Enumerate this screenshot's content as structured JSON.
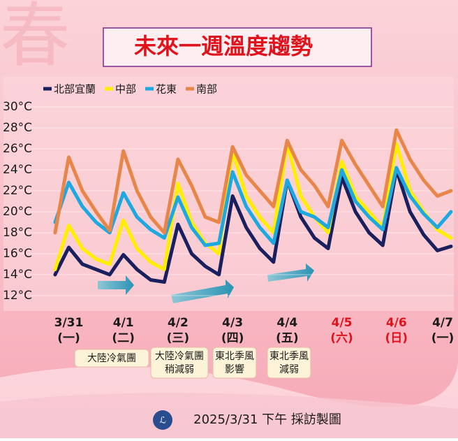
{
  "chart_data": {
    "type": "line",
    "title": "未來一週溫度趨勢",
    "background_text": "春",
    "x": [
      -0.25,
      0,
      0.25,
      0.5,
      0.75,
      1,
      1.25,
      1.5,
      1.75,
      2,
      2.25,
      2.5,
      2.75,
      3,
      3.25,
      3.5,
      3.75,
      4,
      4.25,
      4.5,
      4.75,
      5,
      5.25,
      5.5,
      5.75,
      6,
      6.25,
      6.5,
      6.75,
      7
    ],
    "series": [
      {
        "name": "北部宜蘭",
        "color": "#1a1f5e",
        "values": [
          14,
          16.6,
          15,
          14.5,
          14,
          15.9,
          14.5,
          13.5,
          13.3,
          18.8,
          16,
          14.8,
          14,
          21.5,
          18.5,
          16.5,
          15.2,
          23,
          19.5,
          17.5,
          16.5,
          23.3,
          20,
          18,
          16.8,
          24,
          20,
          17.8,
          16.3,
          16.7
        ]
      },
      {
        "name": "中部",
        "color": "#ffee00",
        "values": [
          14.5,
          18.7,
          16.5,
          15.5,
          15,
          19.2,
          16.5,
          15.2,
          14.5,
          22.7,
          19,
          17,
          16,
          25.8,
          21.5,
          19.5,
          18,
          26.5,
          21.5,
          19.5,
          18,
          24.8,
          21.5,
          20,
          18.5,
          26.5,
          22,
          20,
          18.3,
          17.5
        ]
      },
      {
        "name": "花東",
        "color": "#1ea8e0",
        "values": [
          19,
          22.8,
          20.5,
          19,
          18,
          21.8,
          19.5,
          18.3,
          17.5,
          21.4,
          18.5,
          16.8,
          17,
          23.8,
          20.5,
          18.5,
          17,
          23,
          20,
          19.5,
          18.5,
          24,
          21,
          19.5,
          18.3,
          24.2,
          21.5,
          19.8,
          18.5,
          20
        ]
      },
      {
        "name": "南部",
        "color": "#e8864a",
        "values": [
          18,
          25.2,
          22,
          20,
          18.2,
          25.8,
          22,
          19.5,
          18,
          25,
          22.5,
          19.5,
          19,
          26.2,
          23.5,
          22,
          20.5,
          26.8,
          24,
          22.5,
          20.5,
          26.8,
          24.5,
          22.5,
          20.5,
          27.8,
          25,
          23,
          21.5,
          22
        ]
      }
    ],
    "xlim": [
      -0.3,
      7
    ],
    "xticks": [
      {
        "value": 0,
        "label": "3/31"
      },
      {
        "value": 1,
        "label": "4/1"
      },
      {
        "value": 2,
        "label": "4/2"
      },
      {
        "value": 3,
        "label": "4/3"
      },
      {
        "value": 4,
        "label": "4/4"
      },
      {
        "value": 5,
        "label": "4/5"
      },
      {
        "value": 6,
        "label": "4/6"
      },
      {
        "value": 7,
        "label": "4/7"
      }
    ],
    "weekdays": [
      "(一)",
      "(二)",
      "(三)",
      "(四)",
      "(五)",
      "(六)",
      "(日)",
      "(一)"
    ],
    "xtick_colors": [
      "#1a1a1a",
      "#1a1a1a",
      "#1a1a1a",
      "#1a1a1a",
      "#1a1a1a",
      "#e0121b",
      "#e0121b",
      "#1a1a1a"
    ],
    "ylim": [
      12,
      30
    ],
    "yticks": [
      {
        "value": 12,
        "label": "12°C"
      },
      {
        "value": 14,
        "label": "14°C"
      },
      {
        "value": 16,
        "label": "16°C"
      },
      {
        "value": 18,
        "label": "18°C"
      },
      {
        "value": 20,
        "label": "20°C"
      },
      {
        "value": 22,
        "label": "22°C"
      },
      {
        "value": 24,
        "label": "24°C"
      },
      {
        "value": 26,
        "label": "26°C"
      },
      {
        "value": 28,
        "label": "28°C"
      },
      {
        "value": 30,
        "label": "30°C"
      }
    ],
    "grid": true,
    "legend": "top-left",
    "annotations": [
      [
        "大陸冷氣團"
      ],
      [
        "大陸冷氣團",
        "稍減弱"
      ],
      [
        "東北季風",
        "影響"
      ],
      [
        "東北季風",
        "減弱"
      ]
    ],
    "footer": "2025/3/31 下午 採訪製圖"
  }
}
